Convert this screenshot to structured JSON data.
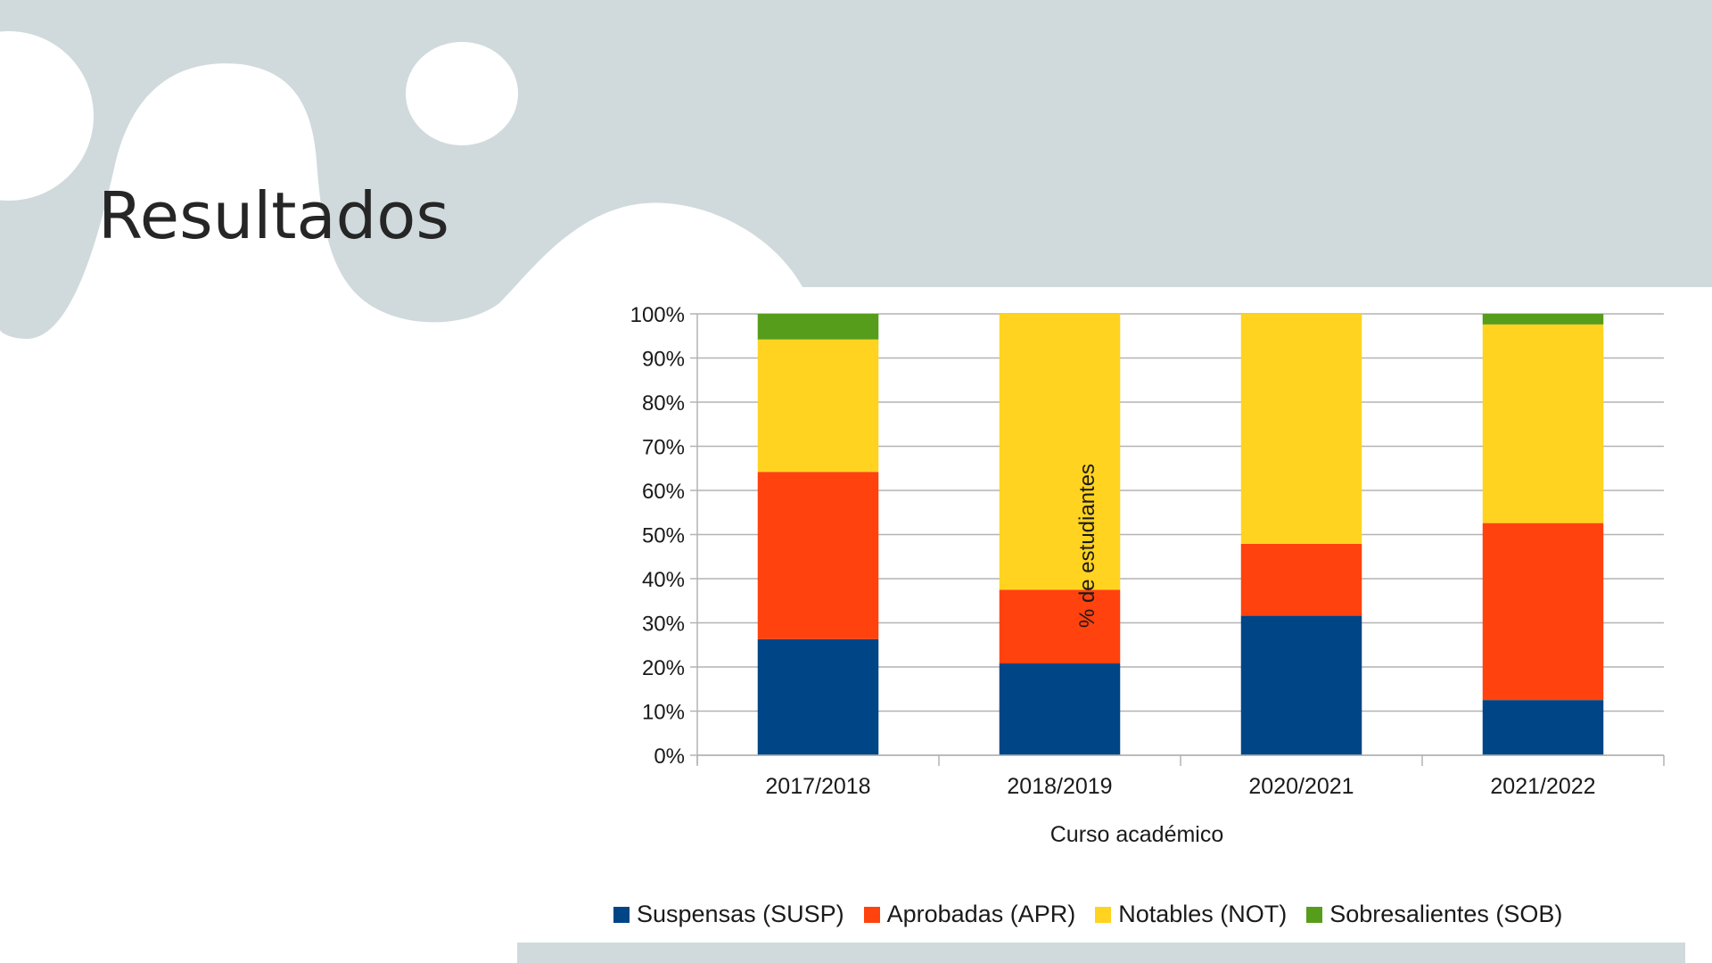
{
  "slide": {
    "title": "Resultados"
  },
  "chart_data": {
    "type": "bar",
    "stacked": true,
    "categories": [
      "2017/2018",
      "2018/2019",
      "2020/2021",
      "2021/2022"
    ],
    "series": [
      {
        "name": "Suspensas (SUSP)",
        "color": "#004586",
        "values": [
          26.3,
          20.8,
          31.6,
          12.5
        ]
      },
      {
        "name": "Aprobadas (APR)",
        "color": "#ff420e",
        "values": [
          37.9,
          16.7,
          16.3,
          40.1
        ]
      },
      {
        "name": "Notables (NOT)",
        "color": "#ffd320",
        "values": [
          30.0,
          62.5,
          52.1,
          45.0
        ]
      },
      {
        "name": "Sobresalientes (SOB)",
        "color": "#579d1c",
        "values": [
          5.8,
          0.0,
          0.0,
          2.4
        ]
      }
    ],
    "xlabel": "Curso académico",
    "ylabel": "% de estudiantes",
    "ylim": [
      0,
      100
    ],
    "yticks": [
      "0%",
      "10%",
      "20%",
      "30%",
      "40%",
      "50%",
      "60%",
      "70%",
      "80%",
      "90%",
      "100%"
    ],
    "grid": true,
    "legend_position": "bottom"
  }
}
